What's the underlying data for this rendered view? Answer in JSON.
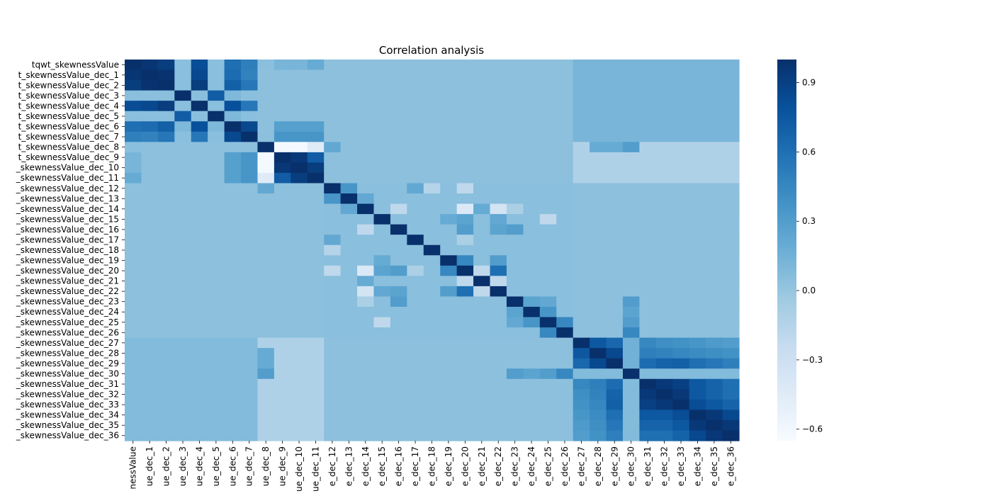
{
  "chart_data": {
    "type": "heatmap",
    "title": "Correlation analysis",
    "row_labels": [
      "tqwt_skewnessValue",
      "t_skewnessValue_dec_1",
      "t_skewnessValue_dec_2",
      "t_skewnessValue_dec_3",
      "t_skewnessValue_dec_4",
      "t_skewnessValue_dec_5",
      "t_skewnessValue_dec_6",
      "t_skewnessValue_dec_7",
      "t_skewnessValue_dec_8",
      "t_skewnessValue_dec_9",
      "_skewnessValue_dec_10",
      "_skewnessValue_dec_11",
      "_skewnessValue_dec_12",
      "_skewnessValue_dec_13",
      "_skewnessValue_dec_14",
      "_skewnessValue_dec_15",
      "_skewnessValue_dec_16",
      "_skewnessValue_dec_17",
      "_skewnessValue_dec_18",
      "_skewnessValue_dec_19",
      "_skewnessValue_dec_20",
      "_skewnessValue_dec_21",
      "_skewnessValue_dec_22",
      "_skewnessValue_dec_23",
      "_skewnessValue_dec_24",
      "_skewnessValue_dec_25",
      "_skewnessValue_dec_26",
      "_skewnessValue_dec_27",
      "_skewnessValue_dec_28",
      "_skewnessValue_dec_29",
      "_skewnessValue_dec_30",
      "_skewnessValue_dec_31",
      "_skewnessValue_dec_32",
      "_skewnessValue_dec_33",
      "_skewnessValue_dec_34",
      "_skewnessValue_dec_35",
      "_skewnessValue_dec_36"
    ],
    "col_labels": [
      "nessValue",
      "ue_dec_1",
      "ue_dec_2",
      "ue_dec_3",
      "ue_dec_4",
      "ue_dec_5",
      "ue_dec_6",
      "ue_dec_7",
      "ue_dec_8",
      "ue_dec_9",
      "ue_dec_10",
      "ue_dec_11",
      "e_dec_12",
      "e_dec_13",
      "e_dec_14",
      "e_dec_15",
      "e_dec_16",
      "e_dec_17",
      "e_dec_18",
      "e_dec_19",
      "e_dec_20",
      "e_dec_21",
      "e_dec_22",
      "e_dec_23",
      "e_dec_24",
      "e_dec_25",
      "e_dec_26",
      "e_dec_27",
      "e_dec_28",
      "e_dec_29",
      "e_dec_30",
      "e_dec_31",
      "e_dec_32",
      "e_dec_33",
      "e_dec_34",
      "e_dec_35",
      "e_dec_36"
    ],
    "vmin": -0.65,
    "vmax": 1.0,
    "colorbar_ticks": [
      "0.9",
      "0.6",
      "0.3",
      "0.0",
      "−0.3",
      "−0.6"
    ],
    "colorbar_tick_values": [
      0.9,
      0.6,
      0.3,
      0.0,
      -0.3,
      -0.6
    ],
    "colormap": [
      "#f7fbff",
      "#deebf7",
      "#c6dbef",
      "#9ecae1",
      "#6baed6",
      "#4292c6",
      "#2171b5",
      "#08519c",
      "#08306b"
    ],
    "base_value": 0.04,
    "blocks": [
      {
        "rows": [
          0,
          7
        ],
        "cols": [
          0,
          7
        ],
        "value": 0.05
      },
      {
        "rows": [
          8,
          11
        ],
        "cols": [
          8,
          11
        ],
        "value": 0.3
      },
      {
        "rows": [
          12,
          26
        ],
        "cols": [
          12,
          26
        ],
        "value": 0.05
      },
      {
        "rows": [
          27,
          36
        ],
        "cols": [
          27,
          36
        ],
        "value": 0.15
      },
      {
        "rows": [
          31,
          36
        ],
        "cols": [
          31,
          36
        ],
        "value": 0.7
      },
      {
        "rows": [
          27,
          29
        ],
        "cols": [
          27,
          29
        ],
        "value": 0.72
      },
      {
        "rows": [
          27,
          29
        ],
        "cols": [
          31,
          36
        ],
        "value": 0.52
      },
      {
        "rows": [
          31,
          36
        ],
        "cols": [
          27,
          29
        ],
        "value": 0.42
      },
      {
        "rows": [
          30,
          30
        ],
        "cols": [
          27,
          36
        ],
        "value": 0.08
      },
      {
        "rows": [
          27,
          36
        ],
        "cols": [
          8,
          11
        ],
        "value": -0.12
      },
      {
        "rows": [
          8,
          11
        ],
        "cols": [
          27,
          36
        ],
        "value": -0.12
      },
      {
        "rows": [
          0,
          7
        ],
        "cols": [
          27,
          36
        ],
        "value": 0.12
      },
      {
        "rows": [
          27,
          36
        ],
        "cols": [
          0,
          7
        ],
        "value": 0.08
      }
    ],
    "cells": [
      [
        0,
        1,
        0.96
      ],
      [
        0,
        2,
        0.92
      ],
      [
        0,
        4,
        0.82
      ],
      [
        0,
        6,
        0.6
      ],
      [
        0,
        7,
        0.5
      ],
      [
        1,
        2,
        0.98
      ],
      [
        1,
        4,
        0.85
      ],
      [
        1,
        6,
        0.62
      ],
      [
        1,
        7,
        0.48
      ],
      [
        2,
        4,
        0.92
      ],
      [
        2,
        6,
        0.7
      ],
      [
        2,
        7,
        0.55
      ],
      [
        3,
        5,
        0.72
      ],
      [
        3,
        6,
        0.1
      ],
      [
        4,
        6,
        0.8
      ],
      [
        4,
        7,
        0.55
      ],
      [
        5,
        6,
        0.1
      ],
      [
        6,
        7,
        0.85
      ],
      [
        0,
        3,
        0.05
      ],
      [
        1,
        3,
        0.05
      ],
      [
        0,
        5,
        0.05
      ],
      [
        8,
        9,
        -0.62
      ],
      [
        8,
        10,
        -0.62
      ],
      [
        8,
        11,
        -0.45
      ],
      [
        9,
        10,
        0.95
      ],
      [
        9,
        11,
        0.72
      ],
      [
        10,
        11,
        0.92
      ],
      [
        0,
        8,
        0.05
      ],
      [
        0,
        9,
        0.12
      ],
      [
        0,
        10,
        0.12
      ],
      [
        0,
        11,
        0.2
      ],
      [
        6,
        9,
        0.28
      ],
      [
        6,
        10,
        0.28
      ],
      [
        6,
        11,
        0.28
      ],
      [
        7,
        9,
        0.35
      ],
      [
        7,
        10,
        0.35
      ],
      [
        7,
        11,
        0.35
      ],
      [
        12,
        13,
        0.35
      ],
      [
        12,
        17,
        0.22
      ],
      [
        12,
        18,
        -0.15
      ],
      [
        12,
        20,
        -0.2
      ],
      [
        13,
        14,
        0.22
      ],
      [
        14,
        16,
        -0.2
      ],
      [
        14,
        20,
        -0.42
      ],
      [
        14,
        21,
        0.2
      ],
      [
        14,
        22,
        -0.35
      ],
      [
        14,
        23,
        -0.1
      ],
      [
        15,
        19,
        0.2
      ],
      [
        15,
        20,
        0.25
      ],
      [
        15,
        22,
        0.22
      ],
      [
        15,
        25,
        -0.2
      ],
      [
        16,
        20,
        0.3
      ],
      [
        16,
        22,
        0.25
      ],
      [
        16,
        23,
        0.3
      ],
      [
        17,
        20,
        -0.1
      ],
      [
        19,
        20,
        0.45
      ],
      [
        19,
        22,
        0.3
      ],
      [
        20,
        21,
        -0.2
      ],
      [
        20,
        22,
        0.6
      ],
      [
        21,
        22,
        -0.2
      ],
      [
        23,
        24,
        0.25
      ],
      [
        23,
        25,
        0.22
      ],
      [
        24,
        25,
        0.35
      ],
      [
        25,
        26,
        0.45
      ],
      [
        26,
        30,
        0.45
      ],
      [
        23,
        30,
        0.3
      ],
      [
        24,
        30,
        0.25
      ],
      [
        25,
        30,
        0.3
      ],
      [
        8,
        12,
        0.22
      ],
      [
        8,
        28,
        0.2
      ],
      [
        8,
        29,
        0.2
      ],
      [
        8,
        30,
        0.3
      ],
      [
        27,
        28,
        0.75
      ],
      [
        27,
        29,
        0.65
      ],
      [
        28,
        29,
        0.85
      ],
      [
        28,
        31,
        0.55
      ],
      [
        28,
        32,
        0.55
      ],
      [
        28,
        33,
        0.55
      ],
      [
        28,
        34,
        0.5
      ],
      [
        28,
        35,
        0.45
      ],
      [
        28,
        36,
        0.4
      ],
      [
        29,
        31,
        0.72
      ],
      [
        29,
        32,
        0.65
      ],
      [
        29,
        33,
        0.65
      ],
      [
        29,
        34,
        0.62
      ],
      [
        29,
        35,
        0.55
      ],
      [
        29,
        36,
        0.5
      ],
      [
        27,
        31,
        0.25
      ],
      [
        27,
        32,
        0.25
      ],
      [
        27,
        33,
        0.25
      ],
      [
        27,
        34,
        0.25
      ],
      [
        27,
        35,
        0.25
      ],
      [
        27,
        36,
        0.25
      ],
      [
        31,
        32,
        0.95
      ],
      [
        31,
        33,
        0.9
      ],
      [
        31,
        34,
        0.75
      ],
      [
        31,
        35,
        0.68
      ],
      [
        31,
        36,
        0.6
      ],
      [
        32,
        33,
        0.95
      ],
      [
        32,
        34,
        0.75
      ],
      [
        32,
        35,
        0.68
      ],
      [
        32,
        36,
        0.6
      ],
      [
        33,
        34,
        0.82
      ],
      [
        33,
        35,
        0.75
      ],
      [
        33,
        36,
        0.68
      ],
      [
        34,
        35,
        0.95
      ],
      [
        34,
        36,
        0.85
      ],
      [
        35,
        36,
        0.95
      ],
      [
        31,
        27,
        0.45
      ],
      [
        31,
        28,
        0.5
      ],
      [
        31,
        29,
        0.62
      ],
      [
        32,
        27,
        0.4
      ],
      [
        32,
        28,
        0.48
      ],
      [
        32,
        29,
        0.68
      ],
      [
        33,
        27,
        0.38
      ],
      [
        33,
        28,
        0.45
      ],
      [
        33,
        29,
        0.7
      ],
      [
        34,
        27,
        0.35
      ],
      [
        34,
        28,
        0.42
      ],
      [
        34,
        29,
        0.6
      ],
      [
        35,
        27,
        0.32
      ],
      [
        35,
        28,
        0.4
      ],
      [
        35,
        29,
        0.55
      ],
      [
        36,
        27,
        0.3
      ],
      [
        36,
        28,
        0.38
      ],
      [
        36,
        29,
        0.5
      ],
      [
        30,
        31,
        0.08
      ],
      [
        30,
        32,
        0.08
      ],
      [
        30,
        33,
        0.08
      ],
      [
        30,
        34,
        0.08
      ],
      [
        30,
        35,
        0.08
      ],
      [
        30,
        36,
        0.08
      ]
    ]
  }
}
